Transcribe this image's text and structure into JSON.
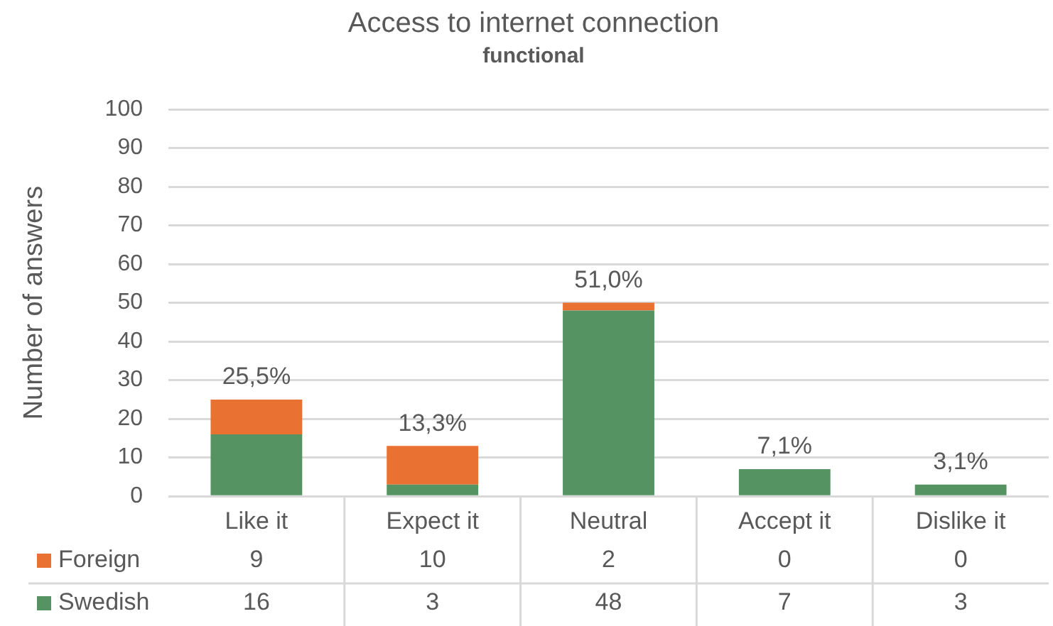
{
  "chart_data": {
    "type": "bar",
    "title": "Access to internet connection",
    "subtitle": "functional",
    "ylabel": "Number of answers",
    "categories": [
      "Like it",
      "Expect it",
      "Neutral",
      "Accept it",
      "Dislike it"
    ],
    "series": [
      {
        "name": "Swedish",
        "color": "#559462",
        "values": [
          16,
          3,
          48,
          7,
          3
        ]
      },
      {
        "name": "Foreign",
        "color": "#e97132",
        "values": [
          9,
          10,
          2,
          0,
          0
        ]
      }
    ],
    "stacked": true,
    "ylim": [
      0,
      100
    ],
    "yticks": [
      0,
      10,
      20,
      30,
      40,
      50,
      60,
      70,
      80,
      90,
      100
    ],
    "grid": "y",
    "legend": "bottom",
    "data_labels": true,
    "annotations": [
      {
        "text": "25,5%",
        "x": "Like it",
        "y": 25
      },
      {
        "text": "13,3%",
        "x": "Expect it",
        "y": 13
      },
      {
        "text": "51,0%",
        "x": "Neutral",
        "y": 50
      },
      {
        "text": "7,1%",
        "x": "Accept it",
        "y": 7
      },
      {
        "text": "3,1%",
        "x": "Dislike it",
        "y": 3
      }
    ]
  }
}
